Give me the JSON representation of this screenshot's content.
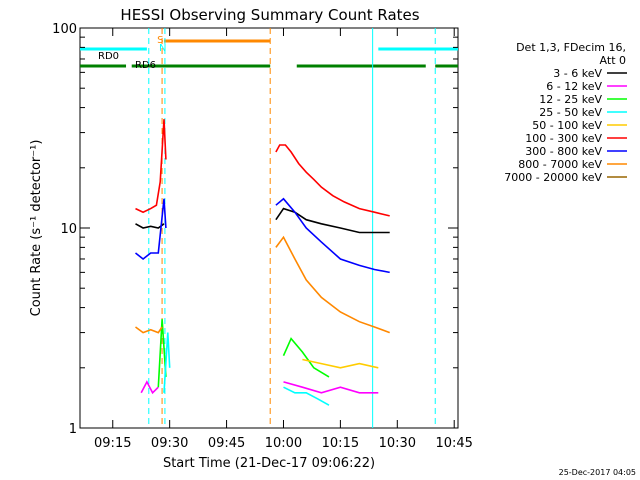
{
  "chart_data": {
    "type": "line",
    "title": "HESSI Observing Summary Count Rates",
    "xlabel": "Start Time (21-Dec-17 09:06:22)",
    "ylabel": "Count Rate (s⁻¹ detector⁻¹)",
    "y_scale": "log",
    "ylim": [
      1,
      100
    ],
    "xlim": [
      "09:06:22",
      "10:46:00"
    ],
    "x_ticks": [
      "09:15",
      "09:30",
      "09:45",
      "10:00",
      "10:15",
      "10:30",
      "10:45"
    ],
    "y_ticks": [
      "1",
      "10",
      "100"
    ],
    "grid": false,
    "legend_position": "right",
    "legend_header": [
      "Det 1,3, FDecim 16,",
      "Att 0"
    ],
    "series": [
      {
        "name": "3 - 6 keV",
        "color": "#000000",
        "segments": [
          {
            "x": [
              "09:21:00",
              "09:23:00",
              "09:25:00",
              "09:27:00",
              "09:28:30"
            ],
            "y": [
              10.5,
              10.0,
              10.2,
              10.0,
              10.5
            ]
          },
          {
            "x": [
              "09:58:00",
              "10:00:00",
              "10:03:00",
              "10:06:00",
              "10:10:00",
              "10:15:00",
              "10:20:00",
              "10:24:00",
              "10:28:00"
            ],
            "y": [
              11,
              12.5,
              12.0,
              11.0,
              10.5,
              10.0,
              9.5,
              9.5,
              9.5
            ]
          }
        ]
      },
      {
        "name": "6 - 12 keV",
        "color": "#ff00ff",
        "segments": [
          {
            "x": [
              "09:22:30",
              "09:24:00",
              "09:25:30",
              "09:27:00"
            ],
            "y": [
              1.5,
              1.7,
              1.5,
              1.6
            ]
          },
          {
            "x": [
              "10:00:00",
              "10:05:00",
              "10:10:00",
              "10:15:00",
              "10:20:00",
              "10:25:00"
            ],
            "y": [
              1.7,
              1.6,
              1.5,
              1.6,
              1.5,
              1.5
            ]
          }
        ]
      },
      {
        "name": "12 - 25 keV",
        "color": "#00ff00",
        "segments": [
          {
            "x": [
              "09:27:00",
              "09:28:00",
              "09:29:00"
            ],
            "y": [
              1.6,
              3.5,
              1.8
            ]
          },
          {
            "x": [
              "10:00:00",
              "10:02:00",
              "10:05:00",
              "10:08:00",
              "10:12:00"
            ],
            "y": [
              2.3,
              2.8,
              2.4,
              2.0,
              1.8
            ]
          }
        ]
      },
      {
        "name": "25 - 50 keV",
        "color": "#00ffff",
        "segments": [
          {
            "x": [
              "09:28:30",
              "09:29:30",
              "09:30:00"
            ],
            "y": [
              1.5,
              3.0,
              2.0
            ]
          },
          {
            "x": [
              "10:00:00",
              "10:03:00",
              "10:06:00",
              "10:09:00",
              "10:12:00"
            ],
            "y": [
              1.6,
              1.5,
              1.5,
              1.4,
              1.3
            ]
          }
        ]
      },
      {
        "name": "50 - 100 keV",
        "color": "#ffcc00",
        "segments": [
          {
            "x": [
              "10:05:00",
              "10:10:00",
              "10:15:00",
              "10:20:00",
              "10:25:00"
            ],
            "y": [
              2.2,
              2.1,
              2.0,
              2.1,
              2.0
            ]
          }
        ]
      },
      {
        "name": "100 - 300 keV",
        "color": "#ff0000",
        "segments": [
          {
            "x": [
              "09:21:00",
              "09:23:00",
              "09:25:00",
              "09:26:30",
              "09:27:30",
              "09:28:30",
              "09:29:00"
            ],
            "y": [
              12.5,
              12.0,
              12.5,
              13.0,
              17.0,
              35.0,
              22.0
            ]
          },
          {
            "x": [
              "09:58:00",
              "09:59:00",
              "10:00:30",
              "10:02:00",
              "10:04:00",
              "10:06:00",
              "10:08:00",
              "10:10:00",
              "10:13:00",
              "10:16:00",
              "10:20:00",
              "10:24:00",
              "10:28:00"
            ],
            "y": [
              24,
              26,
              26,
              24,
              21,
              19,
              17.5,
              16,
              14.5,
              13.5,
              12.5,
              12.0,
              11.5
            ]
          }
        ]
      },
      {
        "name": "300 - 800 keV",
        "color": "#0000ff",
        "segments": [
          {
            "x": [
              "09:21:00",
              "09:23:00",
              "09:25:00",
              "09:27:00",
              "09:28:30",
              "09:29:00"
            ],
            "y": [
              7.5,
              7.0,
              7.5,
              7.5,
              14.0,
              10.0
            ]
          },
          {
            "x": [
              "09:58:00",
              "10:00:00",
              "10:03:00",
              "10:06:00",
              "10:10:00",
              "10:15:00",
              "10:20:00",
              "10:24:00",
              "10:28:00"
            ],
            "y": [
              13,
              14,
              12,
              10,
              8.5,
              7.0,
              6.5,
              6.2,
              6.0
            ]
          }
        ]
      },
      {
        "name": "800 - 7000 keV",
        "color": "#ff8800",
        "segments": [
          {
            "x": [
              "09:21:00",
              "09:23:00",
              "09:25:00",
              "09:27:00",
              "09:28:00"
            ],
            "y": [
              3.2,
              3.0,
              3.1,
              3.0,
              3.2
            ]
          },
          {
            "x": [
              "09:58:00",
              "10:00:00",
              "10:03:00",
              "10:06:00",
              "10:10:00",
              "10:15:00",
              "10:20:00",
              "10:24:00",
              "10:28:00"
            ],
            "y": [
              8.0,
              9.0,
              7.0,
              5.5,
              4.5,
              3.8,
              3.4,
              3.2,
              3.0
            ]
          }
        ]
      },
      {
        "name": "7000 - 20000 keV",
        "color": "#996600",
        "segments": []
      }
    ],
    "instrument_states": [
      {
        "label": "RD0",
        "color": "#008000",
        "segments": [
          [
            "09:06:22",
            "09:18:30"
          ],
          [
            "09:20:00",
            "09:56:30"
          ],
          [
            "10:03:30",
            "10:37:30"
          ],
          [
            "10:40:00",
            "10:46:00"
          ]
        ]
      },
      {
        "label": "RD6",
        "color": "#00ffff",
        "segments": [
          [
            "09:06:22",
            "09:24:00"
          ],
          [
            "10:25:00",
            "10:46:00"
          ]
        ]
      },
      {
        "label": "",
        "color": "#ff8800",
        "segments": [
          [
            "09:28:30",
            "09:56:30"
          ]
        ]
      }
    ],
    "state_markers": [
      {
        "label": "S",
        "color": "#ff8800",
        "time": "09:28:00"
      },
      {
        "label": "N",
        "color": "#00ffff",
        "time": "09:28:30"
      }
    ],
    "vertical_lines": [
      {
        "time": "09:24:30",
        "color": "#00ffff",
        "style": "dashed"
      },
      {
        "time": "09:28:00",
        "color": "#ff8800",
        "style": "dashed"
      },
      {
        "time": "09:28:45",
        "color": "#00ffff",
        "style": "dashed"
      },
      {
        "time": "09:56:30",
        "color": "#ff8800",
        "style": "dashed"
      },
      {
        "time": "10:23:30",
        "color": "#00ffff",
        "style": "solid"
      },
      {
        "time": "10:40:00",
        "color": "#00ffff",
        "style": "dashed"
      }
    ],
    "data_gaps": [
      [
        "09:06:22",
        "09:21:00"
      ],
      [
        "09:30:00",
        "09:58:00"
      ],
      [
        "10:28:00",
        "10:46:00"
      ]
    ]
  },
  "footer_date": "25-Dec-2017 04:05"
}
